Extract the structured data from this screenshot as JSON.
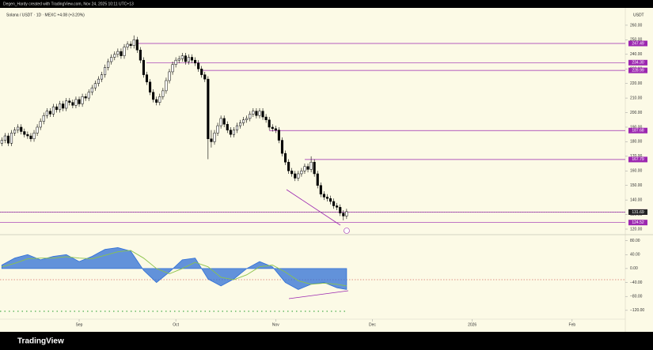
{
  "header": {
    "text": "Degen_Hardy created with TradingView.com, Nov 24, 2025 10:11 UTC+13"
  },
  "footer": {
    "brand": "TradingView"
  },
  "chart_data": [
    {
      "type": "candlestick",
      "title": "Solana / USDT · 1D · MEXC  +4.08 (+3.20%)",
      "unit": "USDT",
      "xlim": [
        -0.57,
        193.5
      ],
      "xticks": [
        {
          "value": 24,
          "label": "Sep"
        },
        {
          "value": 54,
          "label": "Oct"
        },
        {
          "value": 85,
          "label": "Nov"
        },
        {
          "value": 115,
          "label": "Dec"
        },
        {
          "value": 146,
          "label": "2026"
        },
        {
          "value": 177,
          "label": "Feb"
        }
      ],
      "ylim": [
        116.2,
        271.9
      ],
      "yticks": [
        {
          "value": 260,
          "label": "260.00"
        },
        {
          "value": 250,
          "label": "250.00"
        },
        {
          "value": 240,
          "label": "240.00"
        },
        {
          "value": 230,
          "label": "230.00"
        },
        {
          "value": 220,
          "label": "220.00"
        },
        {
          "value": 210,
          "label": "210.00"
        },
        {
          "value": 200,
          "label": "200.00"
        },
        {
          "value": 190,
          "label": "190.00"
        },
        {
          "value": 180,
          "label": "180.00"
        },
        {
          "value": 170,
          "label": "170.00"
        },
        {
          "value": 160,
          "label": "160.00"
        },
        {
          "value": 150,
          "label": "150.00"
        },
        {
          "value": 140,
          "label": "140.00"
        },
        {
          "value": 130,
          "label": "130.00"
        },
        {
          "value": 120,
          "label": "120.00"
        }
      ],
      "levels": [
        247.49,
        {
          "value": 234.3,
          "label": "234.30"
        },
        228.99,
        187.68,
        167.79,
        131.71,
        124.52
      ],
      "level_color": "#9c27b0",
      "last_price": 131.69,
      "ohlc": [
        [
          179,
          183,
          177,
          181
        ],
        [
          181,
          186,
          179,
          184
        ],
        [
          184,
          186,
          177,
          179
        ],
        [
          179,
          188,
          177,
          186
        ],
        [
          186,
          190,
          184,
          188
        ],
        [
          188,
          192,
          186,
          190
        ],
        [
          190,
          192,
          185,
          187
        ],
        [
          187,
          189,
          183,
          185
        ],
        [
          185,
          187,
          182,
          184
        ],
        [
          184,
          186,
          180,
          182
        ],
        [
          182,
          188,
          180,
          186
        ],
        [
          186,
          192,
          184,
          190
        ],
        [
          190,
          196,
          188,
          194
        ],
        [
          194,
          200,
          192,
          198
        ],
        [
          198,
          203,
          196,
          201
        ],
        [
          201,
          203,
          197,
          199
        ],
        [
          199,
          206,
          197,
          204
        ],
        [
          204,
          206,
          200,
          202
        ],
        [
          202,
          208,
          200,
          206
        ],
        [
          206,
          208,
          201,
          203
        ],
        [
          203,
          210,
          201,
          208
        ],
        [
          208,
          210,
          205,
          207
        ],
        [
          207,
          209,
          203,
          205
        ],
        [
          205,
          211,
          203,
          209
        ],
        [
          209,
          211,
          204,
          206
        ],
        [
          206,
          213,
          204,
          211
        ],
        [
          211,
          213,
          208,
          210
        ],
        [
          210,
          216,
          208,
          214
        ],
        [
          214,
          219,
          212,
          217
        ],
        [
          217,
          222,
          215,
          220
        ],
        [
          220,
          225,
          218,
          223
        ],
        [
          223,
          228,
          221,
          226
        ],
        [
          226,
          233,
          224,
          231
        ],
        [
          231,
          237,
          229,
          235
        ],
        [
          235,
          240,
          233,
          238
        ],
        [
          238,
          242,
          236,
          240
        ],
        [
          240,
          244,
          238,
          242
        ],
        [
          242,
          244,
          237,
          239
        ],
        [
          239,
          247,
          237,
          245
        ],
        [
          245,
          249,
          243,
          247
        ],
        [
          247,
          249,
          244,
          246
        ],
        [
          246,
          253,
          244,
          250
        ],
        [
          250,
          252,
          241,
          243
        ],
        [
          243,
          245,
          234,
          236
        ],
        [
          236,
          238,
          224,
          226
        ],
        [
          226,
          228,
          219,
          221
        ],
        [
          221,
          223,
          212,
          214
        ],
        [
          214,
          216,
          207,
          209
        ],
        [
          209,
          211,
          205,
          207
        ],
        [
          207,
          213,
          205,
          211
        ],
        [
          211,
          217,
          209,
          215
        ],
        [
          215,
          224,
          213,
          222
        ],
        [
          222,
          230,
          220,
          228
        ],
        [
          228,
          235,
          226,
          233
        ],
        [
          233,
          238,
          231,
          236
        ],
        [
          236,
          239,
          234,
          237
        ],
        [
          237,
          241,
          235,
          239
        ],
        [
          239,
          241,
          233,
          235
        ],
        [
          235,
          240,
          233,
          238
        ],
        [
          238,
          240,
          234,
          236
        ],
        [
          236,
          238,
          232,
          234
        ],
        [
          234,
          236,
          228,
          230
        ],
        [
          230,
          232,
          224,
          226
        ],
        [
          226,
          228,
          221,
          223
        ],
        [
          223,
          225,
          168,
          182
        ],
        [
          182,
          188,
          176,
          180
        ],
        [
          180,
          188,
          178,
          186
        ],
        [
          186,
          193,
          184,
          191
        ],
        [
          191,
          198,
          189,
          196
        ],
        [
          196,
          198,
          190,
          192
        ],
        [
          192,
          194,
          186,
          188
        ],
        [
          188,
          190,
          183,
          185
        ],
        [
          185,
          190,
          183,
          188
        ],
        [
          188,
          193,
          186,
          191
        ],
        [
          191,
          195,
          189,
          193
        ],
        [
          193,
          197,
          191,
          195
        ],
        [
          195,
          198,
          193,
          196
        ],
        [
          196,
          201,
          194,
          199
        ],
        [
          199,
          203,
          197,
          201
        ],
        [
          201,
          203,
          196,
          198
        ],
        [
          198,
          203,
          196,
          201
        ],
        [
          201,
          203,
          195,
          197
        ],
        [
          197,
          199,
          193,
          195
        ],
        [
          195,
          197,
          188,
          190
        ],
        [
          190,
          192,
          187,
          189
        ],
        [
          189,
          191,
          186,
          188
        ],
        [
          188,
          190,
          179,
          181
        ],
        [
          181,
          183,
          170,
          172
        ],
        [
          172,
          174,
          164,
          166
        ],
        [
          166,
          168,
          158,
          160
        ],
        [
          160,
          162,
          156,
          158
        ],
        [
          158,
          160,
          153,
          155
        ],
        [
          155,
          160,
          153,
          158
        ],
        [
          158,
          162,
          156,
          160
        ],
        [
          160,
          165,
          158,
          163
        ],
        [
          163,
          165,
          159,
          161
        ],
        [
          161,
          170,
          159,
          166
        ],
        [
          166,
          168,
          156,
          158
        ],
        [
          158,
          160,
          148,
          150
        ],
        [
          150,
          152,
          142,
          144
        ],
        [
          144,
          146,
          140,
          142
        ],
        [
          142,
          144,
          139,
          141
        ],
        [
          141,
          143,
          137,
          139
        ],
        [
          139,
          141,
          134,
          136
        ],
        [
          136,
          138,
          133,
          135
        ],
        [
          135,
          137,
          129,
          131
        ],
        [
          131,
          133,
          126,
          129
        ],
        [
          129,
          134,
          127,
          132
        ]
      ]
    },
    {
      "type": "oscillator",
      "x": [
        0,
        4,
        8,
        12,
        16,
        20,
        24,
        28,
        32,
        36,
        40,
        44,
        48,
        52,
        56,
        60,
        64,
        68,
        72,
        76,
        80,
        84,
        88,
        92,
        96,
        100,
        104,
        107
      ],
      "ylim": [
        -143,
        95
      ],
      "yticks": [
        {
          "value": 80,
          "label": "80.00"
        },
        {
          "value": 40,
          "label": "40.00"
        },
        {
          "value": 0,
          "label": "0.00"
        },
        {
          "value": -40,
          "label": "−40.00"
        },
        {
          "value": -80,
          "label": "−80.00"
        },
        {
          "value": -120,
          "label": "−120.00"
        }
      ],
      "series": [
        {
          "color": "#2f6fd6",
          "values": [
            10,
            30,
            40,
            25,
            35,
            40,
            20,
            35,
            55,
            60,
            50,
            -5,
            -40,
            -10,
            25,
            30,
            -30,
            -50,
            -30,
            0,
            20,
            5,
            -40,
            -60,
            -45,
            -40,
            -55,
            -60
          ]
        },
        {
          "color": "#8bc34a",
          "values": [
            5,
            15,
            28,
            30,
            30,
            34,
            30,
            28,
            38,
            48,
            52,
            30,
            0,
            -15,
            0,
            18,
            5,
            -25,
            -32,
            -18,
            5,
            10,
            -10,
            -35,
            -45,
            -42,
            -45,
            -50
          ]
        }
      ]
    }
  ]
}
